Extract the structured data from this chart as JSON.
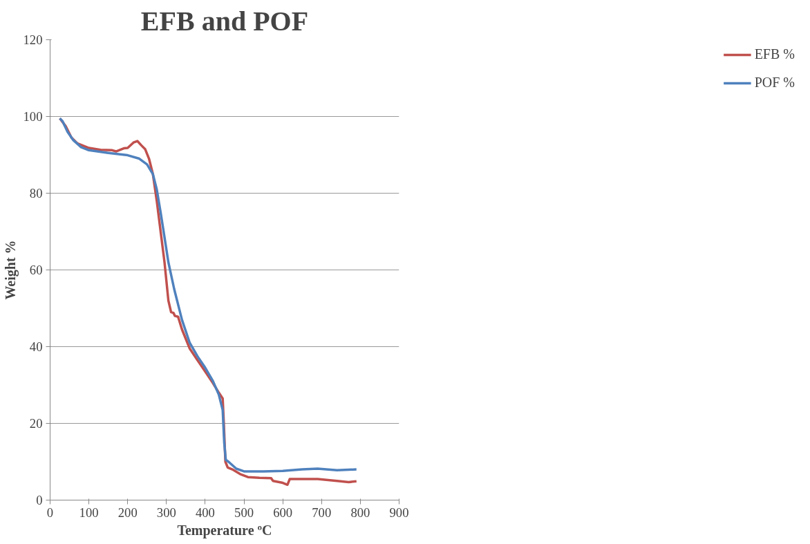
{
  "chart_data": {
    "type": "line",
    "title": "EFB and POF",
    "xlabel": "Temperature ºC",
    "ylabel": "Weight %",
    "xlim": [
      0,
      900
    ],
    "xticks": [
      0,
      100,
      200,
      300,
      400,
      500,
      600,
      700,
      800,
      900
    ],
    "ylim": [
      0,
      120
    ],
    "yticks": [
      0,
      20,
      40,
      60,
      80,
      100,
      120
    ],
    "grid": "y",
    "legend": "right",
    "marker": "none",
    "line_style": "solid",
    "series": [
      {
        "name": "EFB %",
        "color": "#c0504d",
        "x": [
          25,
          40,
          55,
          70,
          100,
          130,
          160,
          170,
          190,
          200,
          215,
          225,
          235,
          245,
          255,
          265,
          275,
          285,
          295,
          305,
          312,
          318,
          322,
          330,
          340,
          360,
          380,
          400,
          420,
          435,
          445,
          448,
          452,
          458,
          470,
          490,
          510,
          540,
          570,
          575,
          600,
          612,
          618,
          650,
          690,
          740,
          770,
          790
        ],
        "values": [
          99.5,
          97.5,
          94.5,
          93,
          91.8,
          91.3,
          91.2,
          90.9,
          91.7,
          91.8,
          93.2,
          93.6,
          92.5,
          91.5,
          89,
          85,
          78,
          70,
          62,
          52,
          49,
          48.8,
          48,
          47.8,
          44.5,
          39.5,
          36.5,
          33.5,
          30.5,
          28,
          26.5,
          20,
          10,
          8.5,
          8,
          6.8,
          6,
          5.8,
          5.7,
          5,
          4.5,
          4,
          5.5,
          5.5,
          5.5,
          5,
          4.7,
          4.9
        ]
      },
      {
        "name": "POF %",
        "color": "#4f81bd",
        "x": [
          25,
          32,
          45,
          60,
          80,
          100,
          150,
          200,
          230,
          250,
          265,
          275,
          285,
          295,
          305,
          320,
          340,
          360,
          380,
          400,
          420,
          435,
          445,
          449,
          453,
          460,
          480,
          500,
          550,
          600,
          650,
          690,
          740,
          790
        ],
        "values": [
          99.5,
          98.8,
          96,
          93.8,
          92,
          91.2,
          90.5,
          89.9,
          89,
          87.5,
          85,
          81,
          75,
          68.5,
          62,
          55,
          47,
          41,
          37.5,
          34.5,
          31,
          27.5,
          23.5,
          15,
          10.5,
          10,
          8.2,
          7.5,
          7.5,
          7.6,
          8,
          8.2,
          7.8,
          8
        ]
      }
    ]
  }
}
